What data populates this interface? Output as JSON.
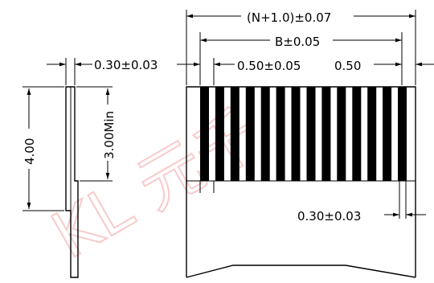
{
  "dimensions": {
    "side_thickness": "0.30±0.03",
    "side_height": "4.00",
    "side_min": "3.00Min",
    "overall_width": "(N+1.0)±0.07",
    "b_width": "B±0.05",
    "pitch": "0.50±0.05",
    "edge_offset": "0.50",
    "contact_width": "0.30±0.03"
  },
  "watermark": {
    "text": "KL 元千"
  },
  "contacts": {
    "count": 14
  },
  "colors": {
    "ink": "#000000",
    "watermark": "#f4b6b6"
  }
}
